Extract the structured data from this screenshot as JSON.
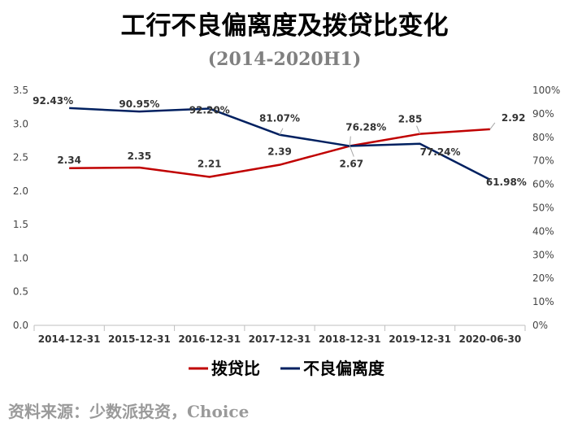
{
  "header": {
    "title": "工行不良偏离度及拨贷比变化",
    "subtitle": "(2014-2020H1)"
  },
  "footer": {
    "source": "资料来源：少数派投资，Choice"
  },
  "chart_data": {
    "type": "line",
    "categories": [
      "2014-12-31",
      "2015-12-31",
      "2016-12-31",
      "2017-12-31",
      "2018-12-31",
      "2019-12-31",
      "2020-06-30"
    ],
    "series": [
      {
        "name": "拨贷比",
        "axis": "left",
        "color": "#c00000",
        "values": [
          2.34,
          2.35,
          2.21,
          2.39,
          2.67,
          2.85,
          2.92
        ],
        "labels": [
          "2.34",
          "2.35",
          "2.21",
          "2.39",
          "2.67",
          "2.85",
          "2.92"
        ]
      },
      {
        "name": "不良偏离度",
        "axis": "right",
        "color": "#002060",
        "values": [
          92.43,
          90.95,
          92.2,
          81.07,
          76.28,
          77.24,
          61.98
        ],
        "labels": [
          "92.43%",
          "90.95%",
          "92.20%",
          "81.07%",
          "76.28%",
          "77.24%",
          "61.98%"
        ]
      }
    ],
    "y_left": {
      "ylim": [
        0,
        3.5
      ],
      "ticks": [
        "0.0",
        "0.5",
        "1.0",
        "1.5",
        "2.0",
        "2.5",
        "3.0",
        "3.5"
      ]
    },
    "y_right": {
      "ylim": [
        0,
        100
      ],
      "ticks": [
        "0%",
        "10%",
        "20%",
        "30%",
        "40%",
        "50%",
        "60%",
        "70%",
        "80%",
        "90%",
        "100%"
      ]
    },
    "grid": false,
    "legend_position": "bottom"
  }
}
